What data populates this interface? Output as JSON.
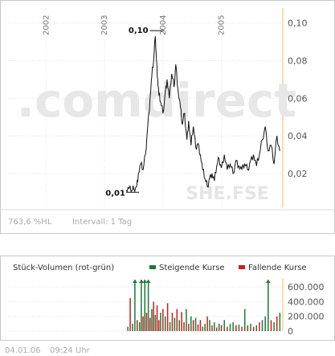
{
  "chart_data": [
    {
      "type": "line",
      "name": "price",
      "xlim": [
        2001.35,
        2006.05
      ],
      "ylim": [
        0.002,
        0.108
      ],
      "x_ticks": [
        2002,
        2003,
        2004,
        2005
      ],
      "x_tick_labels": [
        "2002",
        "2003",
        "2004",
        "2005"
      ],
      "y_ticks": [
        0.02,
        0.04,
        0.06,
        0.08,
        0.1
      ],
      "y_tick_labels": [
        "0,02",
        "0,04",
        "0,06",
        "0,08",
        "0,10"
      ],
      "grid": true,
      "annotations": {
        "max_label": "0,10",
        "max_x": 2003.9,
        "max_y": 0.096,
        "min_label": "0,01",
        "min_x": 2003.48,
        "min_y": 0.01
      },
      "watermark": ".comdirect",
      "symbol": "SHE.FSE",
      "footer_left": "763,6 %HL",
      "footer_right": "Intervall: 1 Tag",
      "x": [
        2003.37,
        2003.42,
        2003.47,
        2003.5,
        2003.55,
        2003.58,
        2003.62,
        2003.66,
        2003.7,
        2003.74,
        2003.78,
        2003.81,
        2003.84,
        2003.87,
        2003.89,
        2003.91,
        2003.93,
        2003.96,
        2004.0,
        2004.04,
        2004.07,
        2004.11,
        2004.15,
        2004.19,
        2004.22,
        2004.26,
        2004.3,
        2004.33,
        2004.37,
        2004.41,
        2004.44,
        2004.48,
        2004.52,
        2004.56,
        2004.6,
        2004.64,
        2004.68,
        2004.72,
        2004.76,
        2004.8,
        2004.84,
        2004.88,
        2004.92,
        2004.96,
        2005.0,
        2005.05,
        2005.1,
        2005.15,
        2005.2,
        2005.25,
        2005.3,
        2005.35,
        2005.4,
        2005.45,
        2005.5,
        2005.55,
        2005.6,
        2005.65,
        2005.7,
        2005.75,
        2005.8,
        2005.85,
        2005.9,
        2005.95,
        2006.0
      ],
      "values": [
        0.011,
        0.012,
        0.011,
        0.012,
        0.013,
        0.02,
        0.025,
        0.022,
        0.03,
        0.045,
        0.06,
        0.072,
        0.08,
        0.093,
        0.08,
        0.07,
        0.062,
        0.058,
        0.052,
        0.063,
        0.07,
        0.06,
        0.073,
        0.066,
        0.078,
        0.064,
        0.055,
        0.046,
        0.052,
        0.038,
        0.048,
        0.035,
        0.045,
        0.034,
        0.036,
        0.03,
        0.022,
        0.017,
        0.013,
        0.018,
        0.02,
        0.016,
        0.024,
        0.028,
        0.023,
        0.03,
        0.022,
        0.025,
        0.02,
        0.027,
        0.024,
        0.022,
        0.025,
        0.022,
        0.027,
        0.03,
        0.024,
        0.03,
        0.038,
        0.045,
        0.032,
        0.035,
        0.025,
        0.04,
        0.032
      ]
    },
    {
      "type": "bar",
      "name": "volume",
      "title": "Stück-Volumen (rot-grün)",
      "legend": [
        {
          "name": "Steigende Kurse",
          "color": "#1a7a3a"
        },
        {
          "name": "Fallende Kurse",
          "color": "#c81e1e"
        }
      ],
      "ylim": [
        0,
        700000
      ],
      "y_ticks": [
        0,
        200000,
        400000,
        600000
      ],
      "y_tick_labels": [
        "0",
        "200.000",
        "400.000",
        "600.000"
      ],
      "x": [
        2003.4,
        2003.44,
        2003.48,
        2003.52,
        2003.56,
        2003.6,
        2003.63,
        2003.66,
        2003.69,
        2003.72,
        2003.75,
        2003.78,
        2003.81,
        2003.84,
        2003.87,
        2003.9,
        2003.93,
        2003.96,
        2004.0,
        2004.04,
        2004.08,
        2004.12,
        2004.16,
        2004.2,
        2004.24,
        2004.28,
        2004.32,
        2004.36,
        2004.4,
        2004.44,
        2004.48,
        2004.52,
        2004.56,
        2004.6,
        2004.64,
        2004.68,
        2004.72,
        2004.76,
        2004.8,
        2004.84,
        2004.88,
        2004.92,
        2004.96,
        2005.0,
        2005.05,
        2005.1,
        2005.15,
        2005.2,
        2005.25,
        2005.3,
        2005.35,
        2005.4,
        2005.45,
        2005.5,
        2005.55,
        2005.6,
        2005.65,
        2005.7,
        2005.75,
        2005.8,
        2005.85,
        2005.9,
        2005.95,
        2006.0
      ],
      "values": [
        60000,
        450000,
        100000,
        700000,
        150000,
        120000,
        700000,
        200000,
        700000,
        250000,
        700000,
        180000,
        300000,
        400000,
        220000,
        350000,
        150000,
        250000,
        300000,
        200000,
        380000,
        120000,
        250000,
        180000,
        300000,
        150000,
        260000,
        120000,
        300000,
        100000,
        200000,
        150000,
        180000,
        90000,
        150000,
        60000,
        100000,
        200000,
        150000,
        80000,
        120000,
        50000,
        100000,
        80000,
        150000,
        60000,
        100000,
        120000,
        80000,
        90000,
        60000,
        300000,
        80000,
        100000,
        60000,
        80000,
        120000,
        150000,
        200000,
        700000,
        150000,
        120000,
        200000,
        250000
      ],
      "rising": [
        true,
        false,
        true,
        true,
        false,
        true,
        true,
        false,
        true,
        false,
        true,
        false,
        true,
        false,
        true,
        false,
        false,
        true,
        false,
        true,
        false,
        true,
        false,
        true,
        false,
        true,
        false,
        false,
        true,
        false,
        true,
        false,
        true,
        false,
        false,
        true,
        true,
        false,
        true,
        false,
        true,
        false,
        true,
        false,
        true,
        false,
        true,
        true,
        false,
        true,
        false,
        true,
        false,
        true,
        false,
        true,
        false,
        true,
        true,
        true,
        false,
        true,
        false,
        true
      ],
      "footer_date": "04.01.06",
      "footer_time": "09:24 Uhr"
    }
  ]
}
